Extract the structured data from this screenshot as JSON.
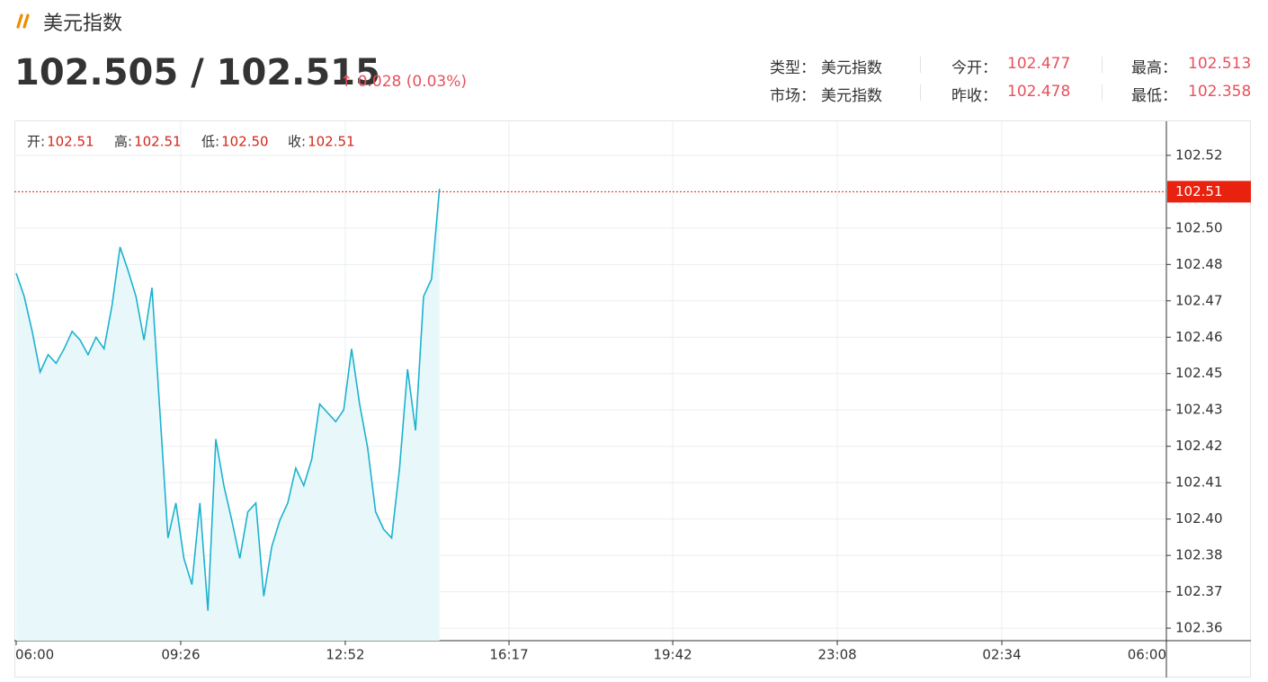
{
  "header": {
    "title": "美元指数",
    "price": "102.505 / 102.515",
    "change": "0.028 (0.03%)"
  },
  "info": {
    "rows": [
      [
        {
          "label": "类型：",
          "value": "美元指数"
        },
        {
          "label": "今开：",
          "value": "102.477"
        },
        {
          "label": "最高：",
          "value": "102.513"
        }
      ],
      [
        {
          "label": "市场：",
          "value": "美元指数"
        },
        {
          "label": "昨收：",
          "value": "102.478"
        },
        {
          "label": "最低：",
          "value": "102.358"
        }
      ]
    ]
  },
  "chart_data": {
    "type": "line",
    "ohlc": [
      {
        "label": "开:",
        "value": "102.51"
      },
      {
        "label": "高:",
        "value": "102.51"
      },
      {
        "label": "低:",
        "value": "102.50"
      },
      {
        "label": "收:",
        "value": "102.51"
      }
    ],
    "x": [
      "06:00",
      "06:10",
      "06:20",
      "06:30",
      "06:40",
      "06:50",
      "07:00",
      "07:10",
      "07:20",
      "07:30",
      "07:40",
      "07:50",
      "08:00",
      "08:10",
      "08:20",
      "08:30",
      "08:40",
      "08:50",
      "09:00",
      "09:10",
      "09:20",
      "09:30",
      "09:40",
      "09:50",
      "10:00",
      "10:10",
      "10:20",
      "10:30",
      "10:40",
      "10:50",
      "11:00",
      "11:10",
      "11:20",
      "11:30",
      "11:40",
      "11:50",
      "12:00",
      "12:10",
      "12:20",
      "12:30",
      "12:40",
      "12:50",
      "13:00",
      "13:10",
      "13:20",
      "13:30",
      "13:40",
      "13:50",
      "14:00",
      "14:10",
      "14:20",
      "14:30",
      "14:40",
      "14:50"
    ],
    "series": [
      {
        "color": "#1cb2cf",
        "fill": "#e8f8fa",
        "values": [
          102.48,
          102.472,
          102.46,
          102.446,
          102.452,
          102.449,
          102.454,
          102.46,
          102.457,
          102.452,
          102.458,
          102.454,
          102.469,
          102.489,
          102.481,
          102.472,
          102.457,
          102.475,
          102.432,
          102.389,
          102.401,
          102.382,
          102.373,
          102.401,
          102.364,
          102.423,
          102.407,
          102.395,
          102.382,
          102.398,
          102.401,
          102.369,
          102.386,
          102.395,
          102.401,
          102.413,
          102.407,
          102.416,
          102.435,
          102.432,
          102.429,
          102.433,
          102.454,
          102.435,
          102.42,
          102.398,
          102.392,
          102.389,
          102.413,
          102.447,
          102.426,
          102.472,
          102.478,
          102.509
        ]
      }
    ],
    "ylim": [
      102.3537,
      102.5322
    ],
    "yticks": [
      {
        "value": 102.358,
        "label": "102.36"
      },
      {
        "value": 102.3705,
        "label": "102.37"
      },
      {
        "value": 102.383,
        "label": "102.38"
      },
      {
        "value": 102.3955,
        "label": "102.40"
      },
      {
        "value": 102.408,
        "label": "102.41"
      },
      {
        "value": 102.4205,
        "label": "102.42"
      },
      {
        "value": 102.433,
        "label": "102.43"
      },
      {
        "value": 102.4455,
        "label": "102.45"
      },
      {
        "value": 102.458,
        "label": "102.46"
      },
      {
        "value": 102.4705,
        "label": "102.47"
      },
      {
        "value": 102.483,
        "label": "102.48"
      },
      {
        "value": 102.4955,
        "label": "102.50"
      },
      {
        "value": 102.5205,
        "label": "102.52"
      }
    ],
    "xticks": [
      "06:00",
      "09:26",
      "12:52",
      "16:17",
      "19:42",
      "23:08",
      "02:34",
      "06:00"
    ],
    "price_line": {
      "value": 102.508,
      "label": "102.51",
      "color": "#e8220f"
    },
    "grid": true
  }
}
